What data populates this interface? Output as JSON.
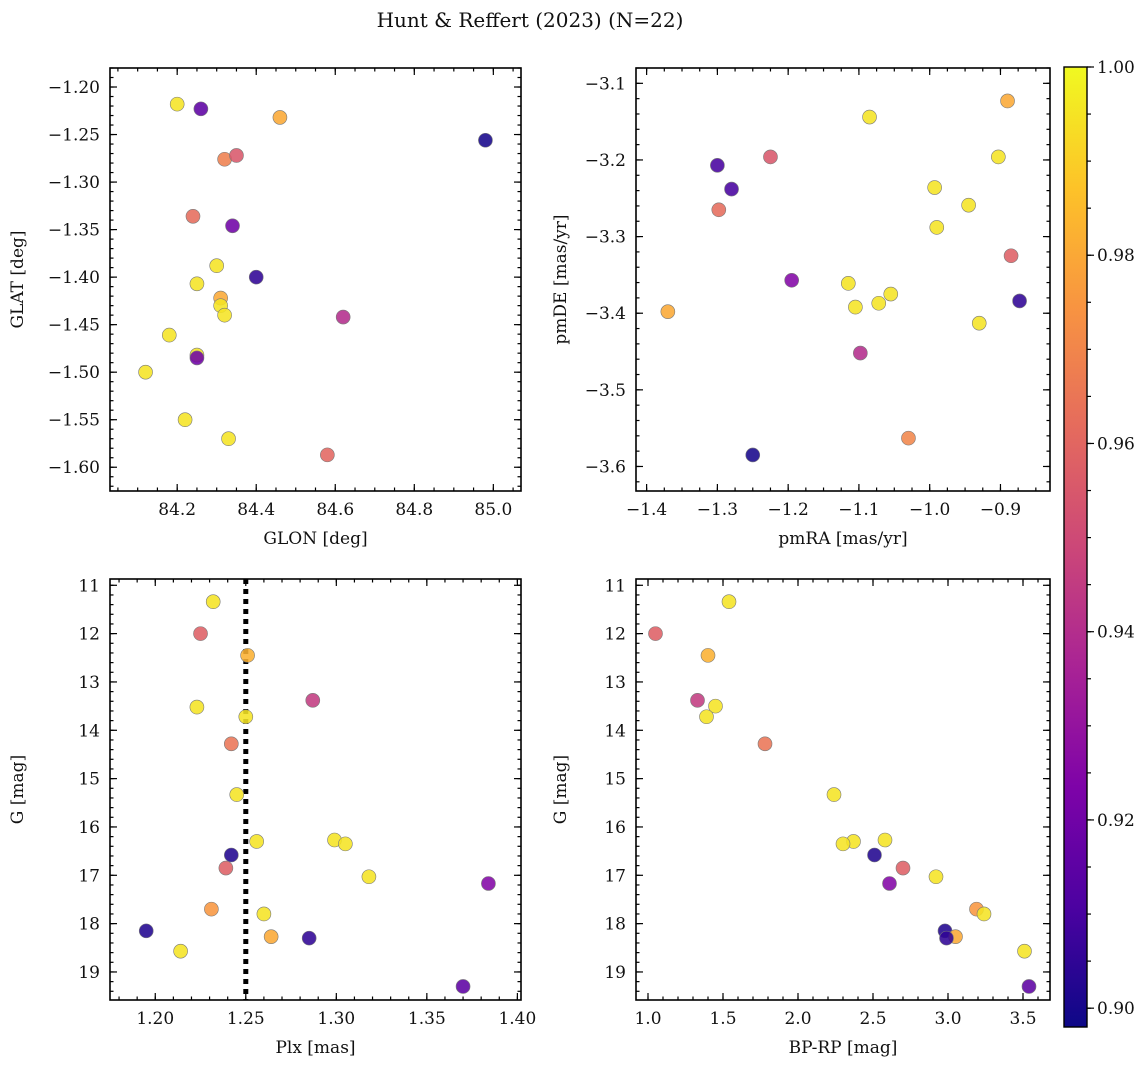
{
  "figure": {
    "title": "Hunt & Reffert (2023) (N=22)"
  },
  "colorbar": {
    "cmap": "plasma",
    "vmin": 0.898,
    "vmax": 1.0,
    "ticks": [
      0.9,
      0.92,
      0.94,
      0.96,
      0.98,
      1.0
    ],
    "tick_labels": [
      "0.90",
      "0.92",
      "0.94",
      "0.96",
      "0.98",
      "1.00"
    ]
  },
  "chart_data": [
    {
      "type": "scatter",
      "title": "",
      "xlabel": "GLON [deg]",
      "ylabel": "GLAT [deg]",
      "xlim": [
        84.03,
        85.07
      ],
      "ylim": [
        -1.625,
        -1.18
      ],
      "y_inverted": false,
      "xticks": [
        84.2,
        84.4,
        84.6,
        84.8,
        85.0
      ],
      "xtick_labels": [
        "84.2",
        "84.4",
        "84.6",
        "84.8",
        "85.0"
      ],
      "xminor_step": 0.05,
      "yticks": [
        -1.6,
        -1.55,
        -1.5,
        -1.45,
        -1.4,
        -1.35,
        -1.3,
        -1.25,
        -1.2
      ],
      "ytick_labels": [
        "−1.60",
        "−1.55",
        "−1.50",
        "−1.45",
        "−1.40",
        "−1.35",
        "−1.30",
        "−1.25",
        "−1.20"
      ],
      "yminor_step": 0.01,
      "points": [
        {
          "x": 84.12,
          "y": -1.5,
          "c": 0.995
        },
        {
          "x": 84.18,
          "y": -1.461,
          "c": 0.995
        },
        {
          "x": 84.2,
          "y": -1.218,
          "c": 0.995
        },
        {
          "x": 84.22,
          "y": -1.55,
          "c": 0.995
        },
        {
          "x": 84.24,
          "y": -1.336,
          "c": 0.962
        },
        {
          "x": 84.25,
          "y": -1.407,
          "c": 0.995
        },
        {
          "x": 84.25,
          "y": -1.482,
          "c": 0.995
        },
        {
          "x": 84.25,
          "y": -1.485,
          "c": 0.92
        },
        {
          "x": 84.26,
          "y": -1.223,
          "c": 0.915
        },
        {
          "x": 84.3,
          "y": -1.388,
          "c": 0.995
        },
        {
          "x": 84.31,
          "y": -1.422,
          "c": 0.98
        },
        {
          "x": 84.31,
          "y": -1.43,
          "c": 0.995
        },
        {
          "x": 84.32,
          "y": -1.276,
          "c": 0.968
        },
        {
          "x": 84.32,
          "y": -1.44,
          "c": 0.995
        },
        {
          "x": 84.33,
          "y": -1.57,
          "c": 0.995
        },
        {
          "x": 84.34,
          "y": -1.346,
          "c": 0.92
        },
        {
          "x": 84.35,
          "y": -1.272,
          "c": 0.955
        },
        {
          "x": 84.4,
          "y": -1.4,
          "c": 0.905
        },
        {
          "x": 84.46,
          "y": -1.232,
          "c": 0.98
        },
        {
          "x": 84.58,
          "y": -1.587,
          "c": 0.96
        },
        {
          "x": 84.62,
          "y": -1.442,
          "c": 0.94
        },
        {
          "x": 84.98,
          "y": -1.256,
          "c": 0.9
        }
      ]
    },
    {
      "type": "scatter",
      "title": "",
      "xlabel": "pmRA [mas/yr]",
      "ylabel": "pmDE [mas/yr]",
      "xlim": [
        -1.415,
        -0.83
      ],
      "ylim": [
        -3.632,
        -3.08
      ],
      "y_inverted": false,
      "xticks": [
        -1.4,
        -1.3,
        -1.2,
        -1.1,
        -1.0,
        -0.9
      ],
      "xtick_labels": [
        "−1.4",
        "−1.3",
        "−1.2",
        "−1.1",
        "−1.0",
        "−0.9"
      ],
      "xminor_step": 0.025,
      "yticks": [
        -3.6,
        -3.5,
        -3.4,
        -3.3,
        -3.2,
        -3.1
      ],
      "ytick_labels": [
        "−3.6",
        "−3.5",
        "−3.4",
        "−3.3",
        "−3.2",
        "−3.1"
      ],
      "yminor_step": 0.02,
      "points": [
        {
          "x": -1.37,
          "y": -3.398,
          "c": 0.98
        },
        {
          "x": -1.3,
          "y": -3.207,
          "c": 0.91
        },
        {
          "x": -1.298,
          "y": -3.265,
          "c": 0.962
        },
        {
          "x": -1.28,
          "y": -3.238,
          "c": 0.91
        },
        {
          "x": -1.25,
          "y": -3.585,
          "c": 0.9
        },
        {
          "x": -1.225,
          "y": -3.196,
          "c": 0.955
        },
        {
          "x": -1.195,
          "y": -3.357,
          "c": 0.925
        },
        {
          "x": -1.115,
          "y": -3.361,
          "c": 0.995
        },
        {
          "x": -1.105,
          "y": -3.392,
          "c": 0.995
        },
        {
          "x": -1.098,
          "y": -3.452,
          "c": 0.94
        },
        {
          "x": -1.085,
          "y": -3.144,
          "c": 0.995
        },
        {
          "x": -1.072,
          "y": -3.387,
          "c": 0.995
        },
        {
          "x": -1.055,
          "y": -3.375,
          "c": 0.995
        },
        {
          "x": -1.03,
          "y": -3.563,
          "c": 0.97
        },
        {
          "x": -0.993,
          "y": -3.236,
          "c": 0.995
        },
        {
          "x": -0.99,
          "y": -3.288,
          "c": 0.995
        },
        {
          "x": -0.945,
          "y": -3.259,
          "c": 0.995
        },
        {
          "x": -0.93,
          "y": -3.413,
          "c": 0.995
        },
        {
          "x": -0.903,
          "y": -3.196,
          "c": 0.995
        },
        {
          "x": -0.89,
          "y": -3.123,
          "c": 0.98
        },
        {
          "x": -0.885,
          "y": -3.325,
          "c": 0.958
        },
        {
          "x": -0.873,
          "y": -3.384,
          "c": 0.905
        }
      ]
    },
    {
      "type": "scatter",
      "title": "",
      "xlabel": "Plx [mas]",
      "ylabel": "G [mag]",
      "xlim": [
        1.175,
        1.402
      ],
      "ylim": [
        19.58,
        10.87
      ],
      "y_inverted": true,
      "xticks": [
        1.2,
        1.25,
        1.3,
        1.35,
        1.4
      ],
      "xtick_labels": [
        "1.20",
        "1.25",
        "1.30",
        "1.35",
        "1.40"
      ],
      "xminor_step": 0.01,
      "yticks": [
        11,
        12,
        13,
        14,
        15,
        16,
        17,
        18,
        19
      ],
      "ytick_labels": [
        "11",
        "12",
        "13",
        "14",
        "15",
        "16",
        "17",
        "18",
        "19"
      ],
      "yminor_step": 0.2,
      "vline": {
        "x": 1.25,
        "style": "dotted",
        "color": "#000000"
      },
      "points": [
        {
          "x": 1.232,
          "y": 11.34,
          "c": 0.995
        },
        {
          "x": 1.225,
          "y": 12.0,
          "c": 0.958
        },
        {
          "x": 1.251,
          "y": 12.45,
          "c": 0.982
        },
        {
          "x": 1.223,
          "y": 13.52,
          "c": 0.995
        },
        {
          "x": 1.287,
          "y": 13.38,
          "c": 0.945
        },
        {
          "x": 1.25,
          "y": 13.72,
          "c": 0.995
        },
        {
          "x": 1.242,
          "y": 14.28,
          "c": 0.965
        },
        {
          "x": 1.245,
          "y": 15.33,
          "c": 0.995
        },
        {
          "x": 1.256,
          "y": 16.3,
          "c": 0.995
        },
        {
          "x": 1.299,
          "y": 16.27,
          "c": 0.995
        },
        {
          "x": 1.305,
          "y": 16.35,
          "c": 0.995
        },
        {
          "x": 1.242,
          "y": 16.58,
          "c": 0.902
        },
        {
          "x": 1.239,
          "y": 16.85,
          "c": 0.958
        },
        {
          "x": 1.318,
          "y": 17.03,
          "c": 0.995
        },
        {
          "x": 1.384,
          "y": 17.17,
          "c": 0.925
        },
        {
          "x": 1.231,
          "y": 17.7,
          "c": 0.975
        },
        {
          "x": 1.26,
          "y": 17.8,
          "c": 0.995
        },
        {
          "x": 1.195,
          "y": 18.15,
          "c": 0.902
        },
        {
          "x": 1.264,
          "y": 18.27,
          "c": 0.98
        },
        {
          "x": 1.285,
          "y": 18.3,
          "c": 0.905
        },
        {
          "x": 1.214,
          "y": 18.57,
          "c": 0.995
        },
        {
          "x": 1.37,
          "y": 19.3,
          "c": 0.915
        }
      ]
    },
    {
      "type": "scatter",
      "title": "",
      "xlabel": "BP-RP [mag]",
      "ylabel": "G [mag]",
      "xlim": [
        0.92,
        3.68
      ],
      "ylim": [
        19.58,
        10.87
      ],
      "y_inverted": true,
      "xticks": [
        1.0,
        1.5,
        2.0,
        2.5,
        3.0,
        3.5
      ],
      "xtick_labels": [
        "1.0",
        "1.5",
        "2.0",
        "2.5",
        "3.0",
        "3.5"
      ],
      "xminor_step": 0.1,
      "yticks": [
        11,
        12,
        13,
        14,
        15,
        16,
        17,
        18,
        19
      ],
      "ytick_labels": [
        "11",
        "12",
        "13",
        "14",
        "15",
        "16",
        "17",
        "18",
        "19"
      ],
      "yminor_step": 0.2,
      "points": [
        {
          "x": 1.54,
          "y": 11.34,
          "c": 0.995
        },
        {
          "x": 1.05,
          "y": 12.0,
          "c": 0.958
        },
        {
          "x": 1.4,
          "y": 12.45,
          "c": 0.982
        },
        {
          "x": 1.33,
          "y": 13.38,
          "c": 0.945
        },
        {
          "x": 1.45,
          "y": 13.5,
          "c": 0.995
        },
        {
          "x": 1.39,
          "y": 13.72,
          "c": 0.995
        },
        {
          "x": 1.78,
          "y": 14.28,
          "c": 0.965
        },
        {
          "x": 2.24,
          "y": 15.33,
          "c": 0.995
        },
        {
          "x": 2.58,
          "y": 16.27,
          "c": 0.995
        },
        {
          "x": 2.37,
          "y": 16.3,
          "c": 0.995
        },
        {
          "x": 2.3,
          "y": 16.35,
          "c": 0.995
        },
        {
          "x": 2.51,
          "y": 16.58,
          "c": 0.902
        },
        {
          "x": 2.7,
          "y": 16.85,
          "c": 0.958
        },
        {
          "x": 2.92,
          "y": 17.03,
          "c": 0.995
        },
        {
          "x": 2.61,
          "y": 17.17,
          "c": 0.925
        },
        {
          "x": 3.19,
          "y": 17.7,
          "c": 0.975
        },
        {
          "x": 3.24,
          "y": 17.8,
          "c": 0.995
        },
        {
          "x": 2.98,
          "y": 18.15,
          "c": 0.902
        },
        {
          "x": 3.05,
          "y": 18.27,
          "c": 0.98
        },
        {
          "x": 2.99,
          "y": 18.3,
          "c": 0.905
        },
        {
          "x": 3.51,
          "y": 18.57,
          "c": 0.995
        },
        {
          "x": 3.54,
          "y": 19.3,
          "c": 0.915
        }
      ]
    }
  ]
}
